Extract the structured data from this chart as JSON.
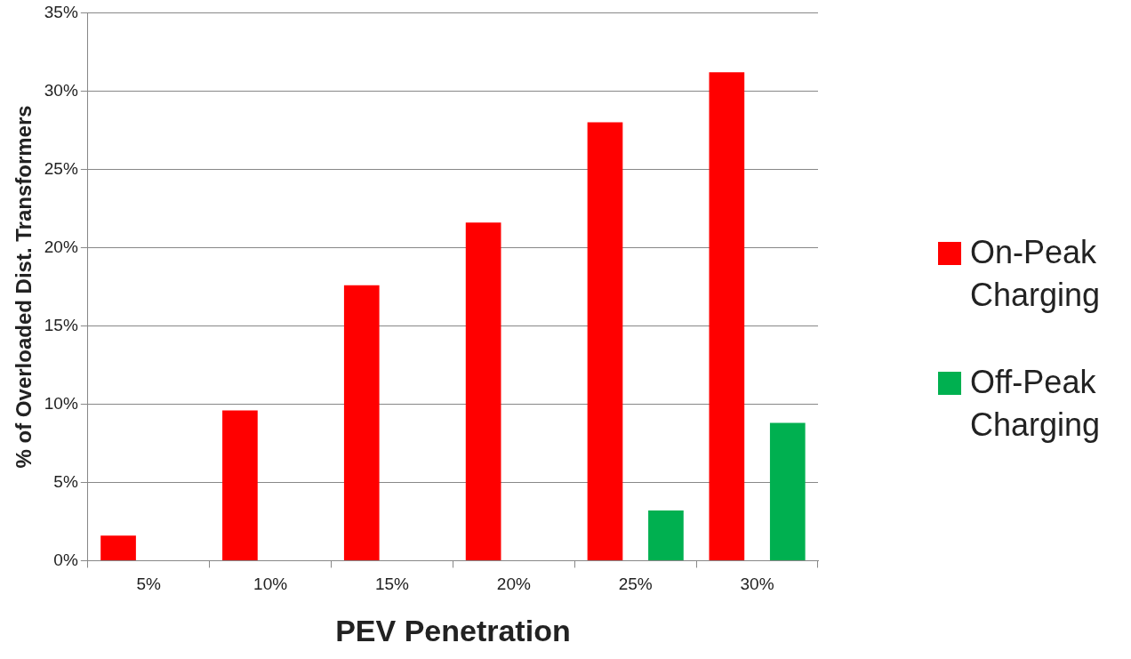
{
  "chart_data": {
    "type": "bar",
    "xlabel": "PEV Penetration",
    "ylabel": "% of Overloaded Dist. Transformers",
    "categories": [
      "5%",
      "10%",
      "15%",
      "20%",
      "25%",
      "30%"
    ],
    "series": [
      {
        "name": "On-Peak Charging",
        "color": "#ff0000",
        "values": [
          1.6,
          9.6,
          17.6,
          21.6,
          28.0,
          31.2
        ]
      },
      {
        "name": "Off-Peak Charging",
        "color": "#00b050",
        "values": [
          0,
          0,
          0,
          0,
          3.2,
          8.8
        ]
      }
    ],
    "ylim": [
      0,
      35
    ],
    "yticks": [
      {
        "value": 0,
        "label": "0%"
      },
      {
        "value": 5,
        "label": "5%"
      },
      {
        "value": 10,
        "label": "10%"
      },
      {
        "value": 15,
        "label": "15%"
      },
      {
        "value": 20,
        "label": "20%"
      },
      {
        "value": 25,
        "label": "25%"
      },
      {
        "value": 30,
        "label": "30%"
      },
      {
        "value": 35,
        "label": "35%"
      }
    ],
    "grid": "y",
    "legend": "right"
  }
}
